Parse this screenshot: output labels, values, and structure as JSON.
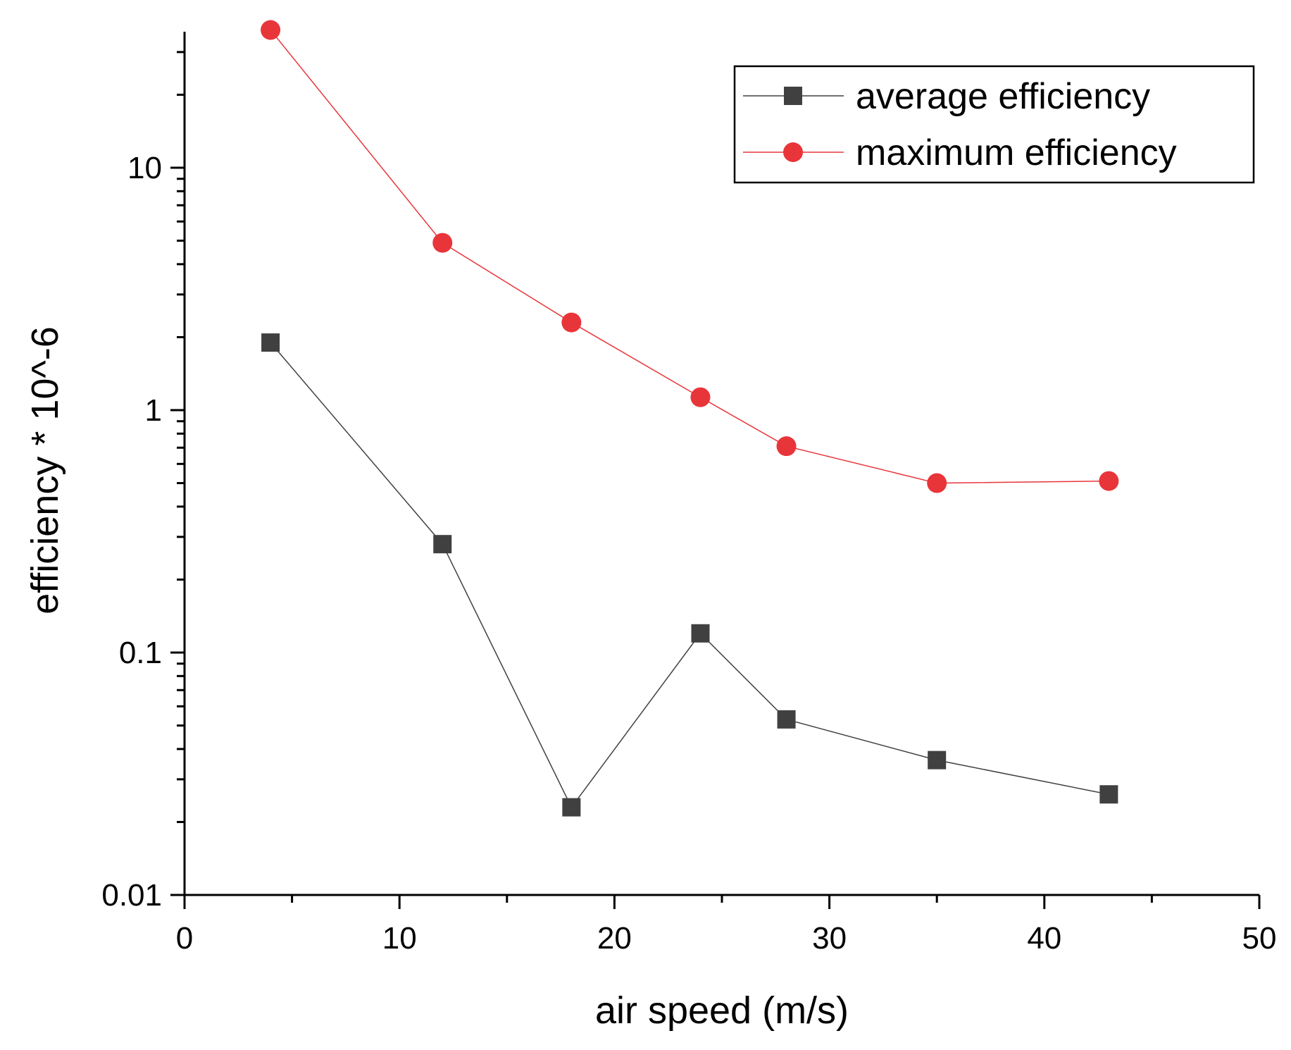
{
  "chart_data": {
    "type": "line",
    "title": "",
    "xlabel": "air speed (m/s)",
    "ylabel": "efficiency * 10^-6",
    "xlim": [
      0,
      50
    ],
    "ylim": [
      0.01,
      40
    ],
    "yscale": "log",
    "xticks": [
      0,
      10,
      20,
      30,
      40,
      50
    ],
    "xtick_labels": [
      "0",
      "10",
      "20",
      "30",
      "40",
      "50"
    ],
    "yticks": [
      0.01,
      0.1,
      1,
      10
    ],
    "ytick_labels": [
      "0.01",
      "0.1",
      "1",
      "10"
    ],
    "grid": false,
    "legend_position": "top-right",
    "series": [
      {
        "name": "average efficiency",
        "color": "#404040",
        "marker": "square",
        "x": [
          4,
          12,
          18,
          24,
          28,
          35,
          43
        ],
        "values": [
          1.9,
          0.28,
          0.023,
          0.12,
          0.053,
          0.036,
          0.026
        ]
      },
      {
        "name": "maximum efficiency",
        "color": "#e8353a",
        "marker": "circle",
        "x": [
          4,
          12,
          18,
          24,
          28,
          35,
          43
        ],
        "values": [
          37,
          4.9,
          2.3,
          1.13,
          0.71,
          0.5,
          0.51
        ]
      }
    ]
  }
}
